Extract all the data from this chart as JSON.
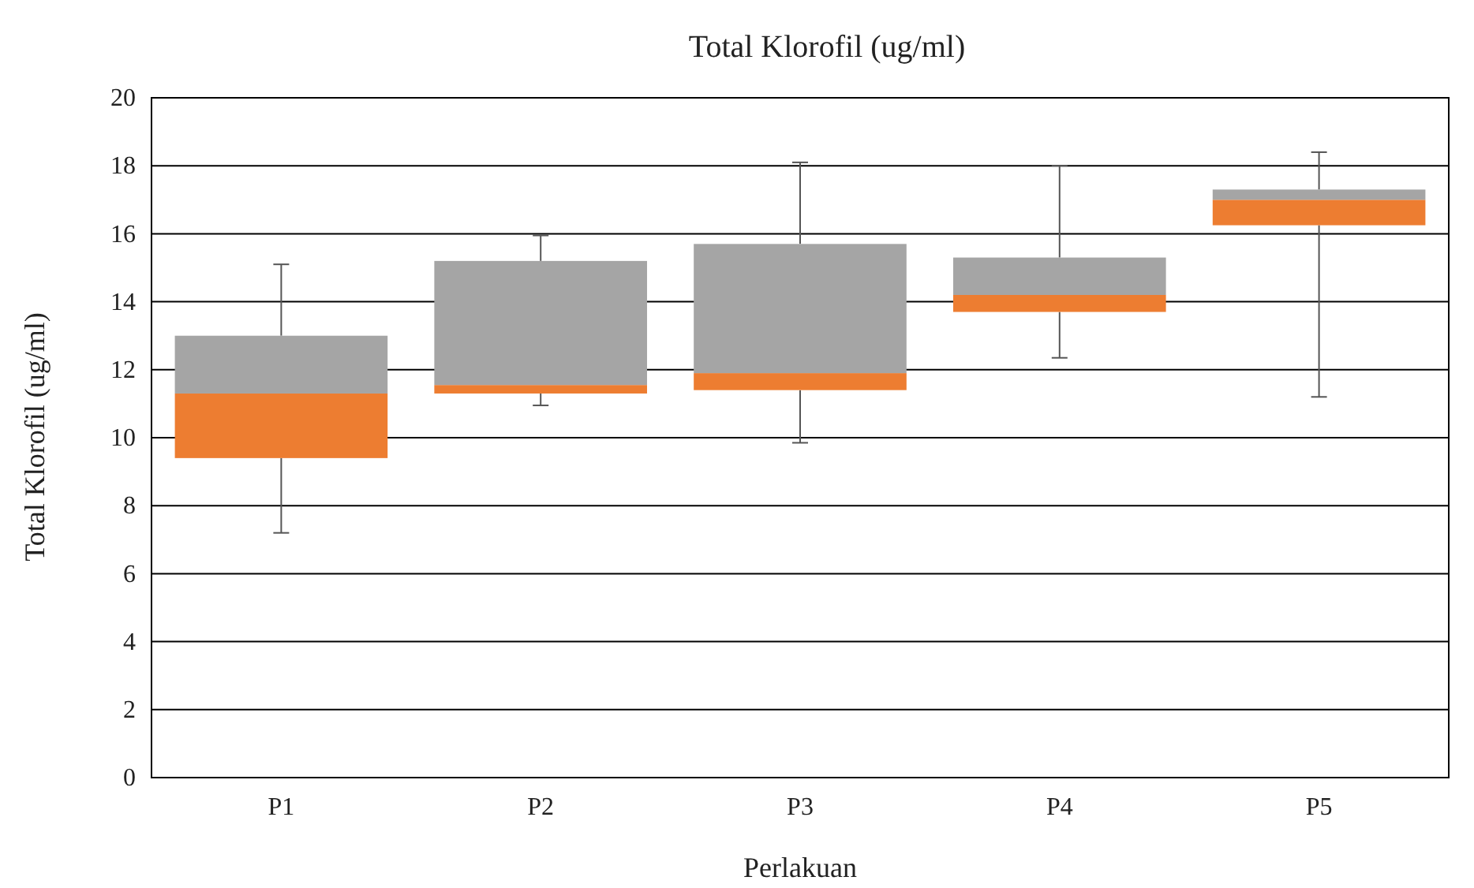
{
  "chart_data": {
    "type": "box",
    "title": "Total Klorofil (ug/ml)",
    "xlabel": "Perlakuan",
    "ylabel": "Total Klorofil  (ug/ml)",
    "categories": [
      "P1",
      "P2",
      "P3",
      "P4",
      "P5"
    ],
    "colors": [
      [
        "#ed7d31",
        "#a5a5a5"
      ],
      [
        "#ed7d31",
        "#a5a5a5"
      ],
      [
        "#ed7d31",
        "#a5a5a5"
      ],
      [
        "#ed7d31",
        "#a5a5a5"
      ],
      [
        "#ed7d31",
        "#a5a5a5"
      ]
    ],
    "boxes": [
      {
        "low": 7.2,
        "q1": 9.4,
        "median": 11.3,
        "q3": 13.0,
        "high": 15.1
      },
      {
        "low": 10.95,
        "q1": 11.3,
        "median": 11.55,
        "q3": 15.2,
        "high": 15.95
      },
      {
        "low": 9.85,
        "q1": 11.4,
        "median": 11.9,
        "q3": 15.7,
        "high": 18.1
      },
      {
        "low": 12.35,
        "q1": 13.7,
        "median": 14.2,
        "q3": 15.3,
        "high": 18.0
      },
      {
        "low": 11.2,
        "q1": 16.25,
        "median": 17.0,
        "q3": 17.3,
        "high": 18.4
      }
    ],
    "ylim": [
      0,
      20
    ],
    "yticks": [
      0,
      2,
      4,
      6,
      8,
      10,
      12,
      14,
      16,
      18,
      20
    ],
    "grid": "y"
  }
}
